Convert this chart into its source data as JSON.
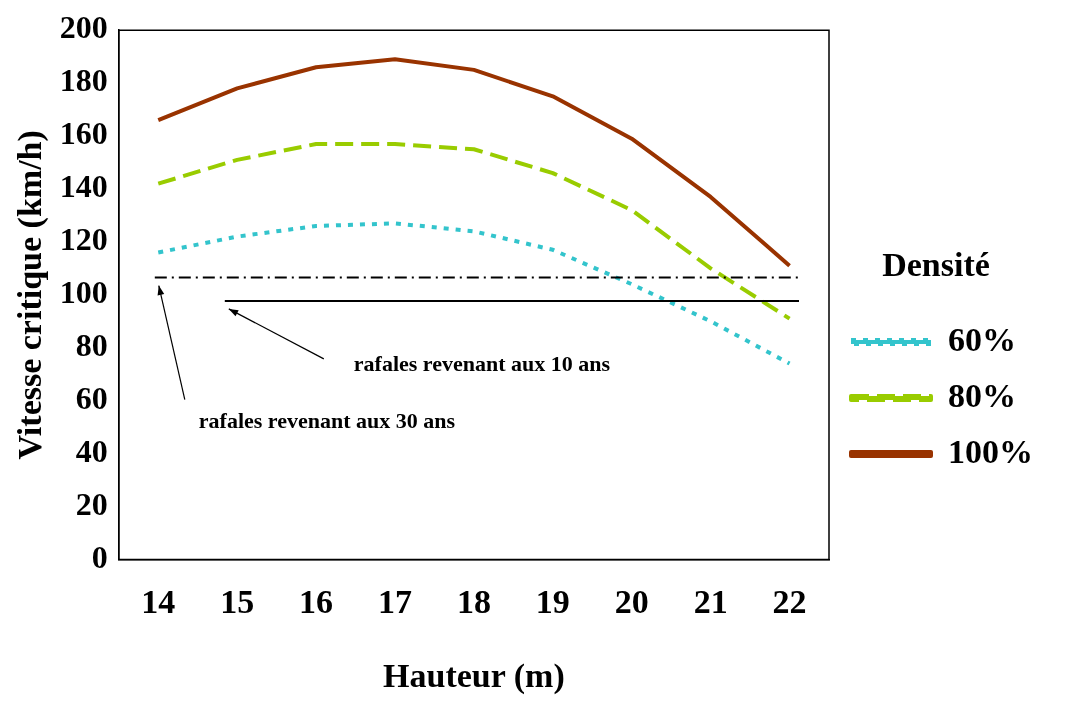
{
  "chart_data": {
    "type": "line",
    "xlabel": "Hauteur (m)",
    "ylabel": "Vitesse critique (km/h)",
    "legend_title": "Densité",
    "categories": [
      "14",
      "15",
      "16",
      "17",
      "18",
      "19",
      "20",
      "21",
      "22"
    ],
    "series": [
      {
        "name": "60%",
        "color": "#33c4cc",
        "line_style": "dotted",
        "values": [
          116,
          122,
          126,
          127,
          124,
          117,
          104,
          90,
          74
        ]
      },
      {
        "name": "80%",
        "color": "#99cc00",
        "line_style": "dashed",
        "values": [
          142,
          151,
          157,
          157,
          155,
          146,
          132,
          110,
          91
        ]
      },
      {
        "name": "100%",
        "color": "#993300",
        "line_style": "solid",
        "values": [
          166,
          178,
          186,
          189,
          185,
          175,
          159,
          137,
          111
        ]
      }
    ],
    "ylim": [
      0,
      200
    ],
    "yticks": [
      0,
      20,
      40,
      60,
      80,
      100,
      120,
      140,
      160,
      180,
      200
    ],
    "grid": false,
    "legend": "right",
    "marker": "none",
    "ref_lines": [
      {
        "axis": "y",
        "value": 106.5,
        "label": "rafales revenant aux 30 ans",
        "color": "#000000",
        "line_style": "dashed"
      },
      {
        "axis": "y",
        "value": 97.7,
        "label": "rafales revenant aux 10 ans",
        "color": "#000000",
        "line_style": "solid"
      }
    ]
  }
}
